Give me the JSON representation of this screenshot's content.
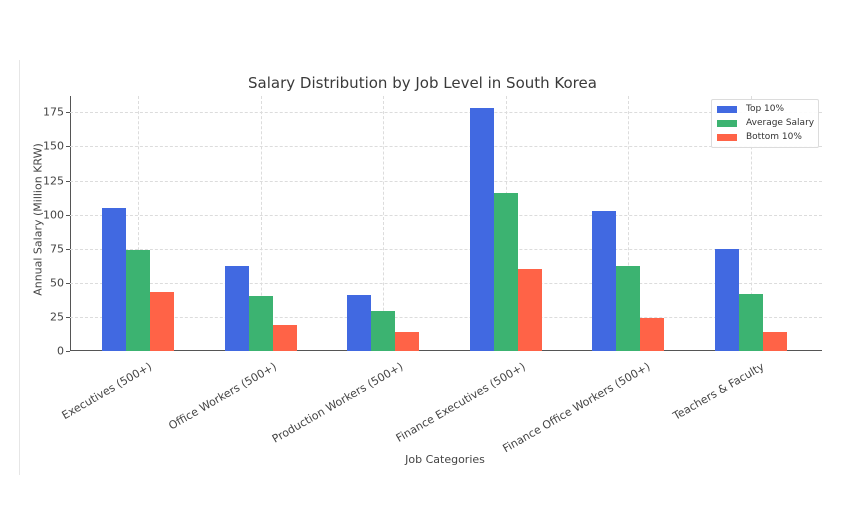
{
  "chart_data": {
    "type": "bar",
    "title": "Salary Distribution by Job Level in South Korea",
    "xlabel": "Job Categories",
    "ylabel": "Annual Salary (Million KRW)",
    "ylim": [
      0,
      187
    ],
    "yticks": [
      0,
      25,
      50,
      75,
      100,
      125,
      150,
      175
    ],
    "grid": true,
    "legend_position": "upper right",
    "categories": [
      "Executives (500+)",
      "Office Workers (500+)",
      "Production Workers (500+)",
      "Finance Executives (500+)",
      "Finance Office Workers (500+)",
      "Teachers & Faculty"
    ],
    "series": [
      {
        "name": "Top 10%",
        "color": "#4169e1",
        "values": [
          105,
          62,
          41,
          178,
          103,
          75
        ]
      },
      {
        "name": "Average Salary",
        "color": "#3cb371",
        "values": [
          74,
          40,
          29,
          116,
          62,
          42
        ]
      },
      {
        "name": "Bottom 10%",
        "color": "#ff6347",
        "values": [
          43,
          19,
          14,
          60,
          24,
          14
        ]
      }
    ]
  }
}
